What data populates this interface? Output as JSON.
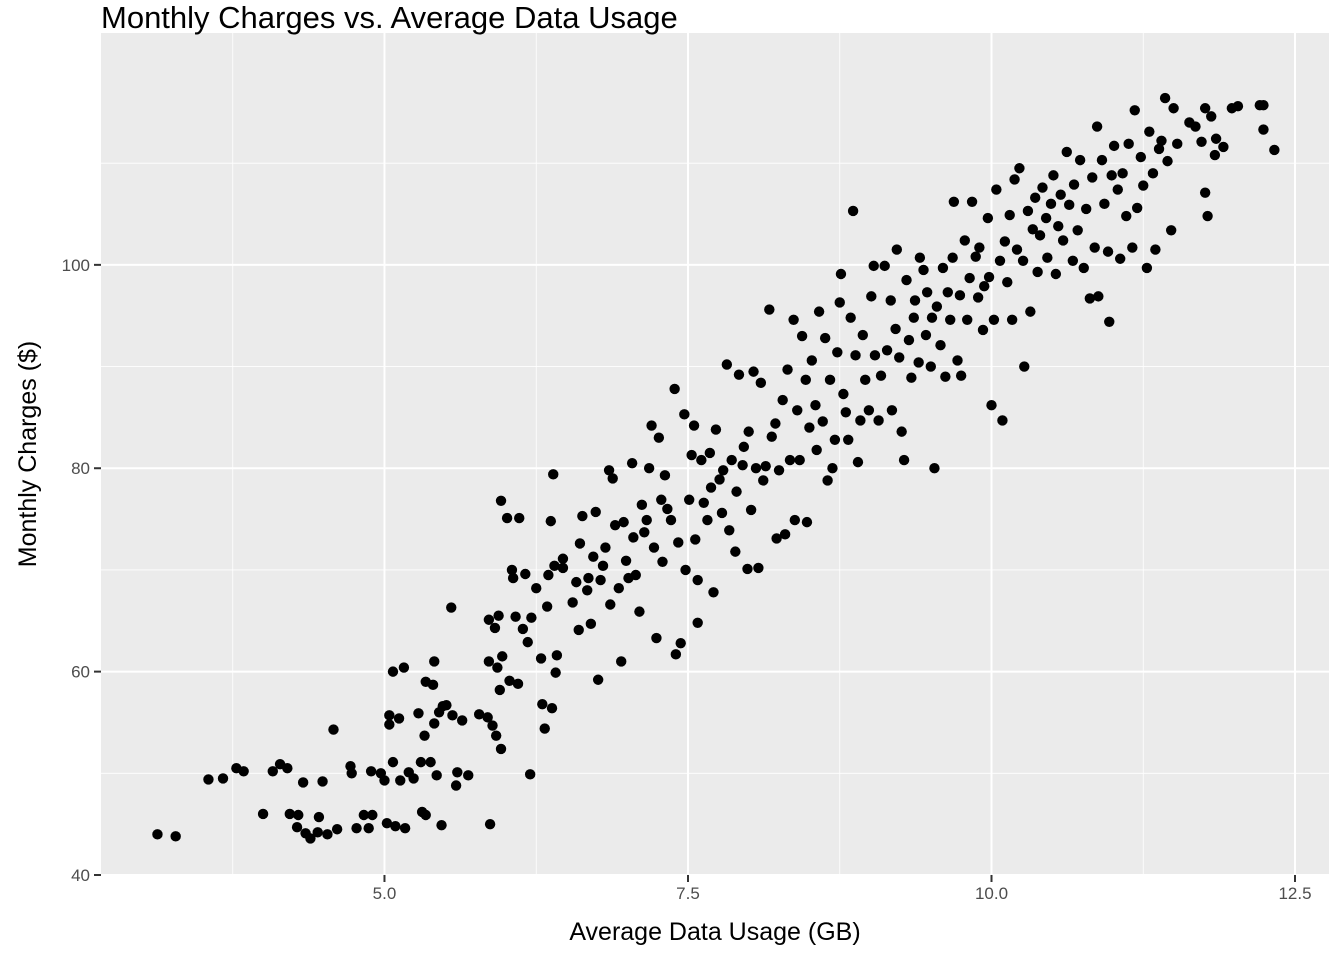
{
  "chart_data": {
    "type": "scatter",
    "title": "Monthly Charges vs. Average Data Usage",
    "x_label": "Average Data Usage (GB)",
    "y_label": "Monthly Charges ($)",
    "color": "#000000",
    "xlim": [
      2.665,
      12.78
    ],
    "ylim": [
      40,
      122.8
    ],
    "xticks": [
      {
        "value": 5,
        "label": "5.0"
      },
      7.5,
      {
        "value": 10,
        "label": "10.0"
      },
      12.5
    ],
    "yticks": [
      40,
      60,
      80,
      100
    ],
    "x_minor": [
      3.75,
      6.25,
      8.75,
      11.25
    ],
    "y_minor": [
      50,
      70,
      90,
      110
    ],
    "grid": true,
    "x": [
      3.13,
      3.28,
      3.55,
      3.67,
      3.78,
      3.84,
      4.0,
      4.08,
      4.14,
      4.2,
      4.22,
      4.29,
      4.28,
      4.33,
      4.35,
      4.39,
      4.45,
      4.46,
      4.49,
      4.53,
      4.58,
      4.61,
      4.72,
      4.73,
      4.77,
      4.83,
      4.87,
      4.89,
      4.9,
      4.97,
      5.0,
      5.02,
      5.04,
      5.04,
      5.07,
      5.07,
      5.09,
      5.12,
      5.13,
      5.16,
      5.17,
      5.2,
      5.24,
      5.28,
      5.3,
      5.31,
      5.33,
      5.34,
      5.34,
      5.38,
      5.4,
      5.41,
      5.41,
      5.43,
      5.45,
      5.47,
      5.48,
      5.51,
      5.55,
      5.56,
      5.59,
      5.6,
      5.64,
      5.69,
      5.78,
      5.85,
      5.86,
      5.86,
      5.87,
      5.89,
      5.91,
      5.92,
      5.93,
      5.94,
      5.95,
      5.96,
      5.96,
      5.97,
      6.01,
      6.03,
      6.05,
      6.06,
      6.08,
      6.1,
      6.11,
      6.14,
      6.16,
      6.18,
      6.2,
      6.21,
      6.25,
      6.29,
      6.3,
      6.32,
      6.34,
      6.35,
      6.37,
      6.38,
      6.39,
      6.4,
      6.41,
      6.42,
      6.47,
      6.47,
      6.55,
      6.58,
      6.6,
      6.61,
      6.63,
      6.67,
      6.68,
      6.7,
      6.72,
      6.74,
      6.76,
      6.78,
      6.8,
      6.82,
      6.85,
      6.86,
      6.88,
      6.9,
      6.93,
      6.95,
      6.97,
      6.99,
      7.01,
      7.04,
      7.05,
      7.07,
      7.1,
      7.12,
      7.14,
      7.16,
      7.18,
      7.2,
      7.22,
      7.24,
      7.26,
      7.28,
      7.29,
      7.31,
      7.33,
      7.36,
      7.39,
      7.4,
      7.42,
      7.44,
      7.47,
      7.48,
      7.51,
      7.53,
      7.55,
      7.56,
      7.58,
      7.58,
      7.61,
      7.63,
      7.66,
      7.68,
      7.69,
      7.71,
      7.73,
      7.76,
      7.78,
      7.79,
      7.82,
      7.84,
      7.86,
      7.89,
      7.9,
      7.92,
      7.95,
      7.96,
      7.99,
      8.0,
      8.02,
      8.04,
      8.06,
      8.08,
      8.1,
      8.12,
      8.14,
      8.17,
      8.19,
      8.22,
      8.23,
      8.25,
      8.28,
      8.3,
      8.32,
      8.34,
      8.37,
      8.38,
      8.4,
      8.42,
      8.44,
      8.47,
      8.48,
      8.5,
      8.52,
      8.55,
      8.56,
      8.58,
      8.61,
      8.63,
      8.65,
      8.67,
      8.69,
      8.71,
      8.73,
      8.75,
      8.76,
      8.78,
      8.8,
      8.82,
      8.84,
      8.86,
      8.88,
      8.9,
      8.92,
      8.94,
      8.96,
      8.99,
      9.01,
      9.03,
      9.04,
      9.07,
      9.09,
      9.12,
      9.14,
      9.17,
      9.18,
      9.21,
      9.22,
      9.24,
      9.26,
      9.28,
      9.3,
      9.32,
      9.34,
      9.36,
      9.37,
      9.4,
      9.41,
      9.44,
      9.46,
      9.47,
      9.5,
      9.51,
      9.53,
      9.55,
      9.58,
      9.6,
      9.62,
      9.64,
      9.66,
      9.68,
      9.69,
      9.72,
      9.74,
      9.75,
      9.78,
      9.8,
      9.82,
      9.84,
      9.87,
      9.89,
      9.9,
      9.93,
      9.94,
      9.97,
      9.98,
      10.0,
      10.02,
      10.04,
      10.07,
      10.09,
      10.11,
      10.13,
      10.15,
      10.17,
      10.19,
      10.21,
      10.23,
      10.26,
      10.27,
      10.3,
      10.32,
      10.34,
      10.36,
      10.38,
      10.4,
      10.42,
      10.45,
      10.46,
      10.49,
      10.51,
      10.53,
      10.55,
      10.57,
      10.59,
      10.62,
      10.64,
      10.67,
      10.68,
      10.71,
      10.73,
      10.76,
      10.78,
      10.81,
      10.83,
      10.85,
      10.87,
      10.88,
      10.91,
      10.93,
      10.96,
      10.97,
      10.99,
      11.01,
      11.04,
      11.06,
      11.08,
      11.11,
      11.13,
      11.16,
      11.18,
      11.2,
      11.23,
      11.25,
      11.28,
      11.3,
      11.33,
      11.35,
      11.38,
      11.4,
      11.43,
      11.45,
      11.48,
      11.5,
      11.53,
      11.63,
      11.68,
      11.73,
      11.76,
      11.76,
      11.78,
      11.81,
      11.84,
      11.85,
      11.91,
      11.98,
      12.03,
      12.21,
      12.24,
      12.24,
      12.33
    ],
    "values": [
      44.0,
      43.8,
      49.4,
      49.5,
      50.5,
      50.2,
      46.0,
      50.2,
      50.9,
      50.5,
      46.0,
      45.9,
      44.7,
      49.1,
      44.1,
      43.6,
      44.2,
      45.7,
      49.2,
      44.0,
      54.3,
      44.5,
      50.7,
      50.0,
      44.6,
      45.9,
      44.6,
      50.2,
      45.9,
      50.0,
      49.3,
      45.1,
      55.7,
      54.8,
      60.0,
      51.1,
      44.8,
      55.4,
      49.3,
      60.4,
      44.6,
      50.1,
      49.5,
      55.9,
      51.1,
      46.2,
      53.7,
      59.0,
      45.9,
      51.1,
      58.7,
      54.9,
      61.0,
      49.8,
      56.0,
      44.9,
      56.6,
      56.7,
      66.3,
      55.7,
      48.8,
      50.1,
      55.2,
      49.8,
      55.8,
      55.5,
      65.1,
      61.0,
      45.0,
      54.7,
      64.3,
      53.7,
      60.4,
      65.5,
      58.2,
      76.8,
      52.4,
      61.5,
      75.1,
      59.1,
      70.0,
      69.2,
      65.4,
      58.8,
      75.1,
      64.2,
      69.6,
      62.9,
      49.9,
      65.3,
      68.2,
      61.3,
      56.8,
      54.4,
      66.4,
      69.5,
      74.8,
      56.4,
      79.4,
      70.4,
      59.9,
      61.6,
      70.2,
      71.1,
      66.8,
      68.8,
      64.1,
      72.6,
      75.3,
      68.0,
      69.2,
      64.7,
      71.3,
      75.7,
      59.2,
      69.0,
      70.4,
      72.2,
      79.8,
      66.6,
      79.0,
      74.4,
      68.2,
      61.0,
      74.7,
      70.9,
      69.2,
      80.5,
      73.2,
      69.5,
      65.9,
      76.4,
      73.7,
      74.9,
      80.0,
      84.2,
      72.2,
      63.3,
      83.0,
      76.9,
      70.8,
      79.3,
      76.0,
      74.9,
      87.8,
      61.7,
      72.7,
      62.8,
      85.3,
      70.0,
      76.9,
      81.3,
      84.2,
      73.0,
      69.0,
      64.8,
      80.8,
      76.6,
      74.9,
      81.5,
      78.1,
      67.8,
      83.8,
      78.9,
      75.6,
      79.8,
      90.2,
      73.9,
      80.8,
      71.8,
      77.7,
      89.2,
      80.3,
      82.1,
      70.1,
      83.6,
      75.9,
      89.5,
      80.0,
      70.2,
      88.4,
      78.8,
      80.2,
      95.6,
      83.1,
      84.4,
      73.1,
      79.8,
      86.7,
      73.5,
      89.7,
      80.8,
      94.6,
      74.9,
      85.7,
      80.8,
      93.0,
      88.7,
      74.7,
      84.0,
      90.6,
      86.2,
      81.8,
      95.4,
      84.6,
      92.8,
      78.8,
      88.7,
      80.0,
      82.8,
      91.4,
      96.3,
      99.1,
      87.3,
      85.5,
      82.8,
      94.8,
      105.3,
      91.1,
      80.6,
      84.7,
      93.1,
      88.7,
      85.7,
      96.9,
      99.9,
      91.1,
      84.7,
      89.1,
      99.9,
      91.6,
      96.5,
      85.7,
      93.7,
      101.5,
      90.9,
      83.6,
      80.8,
      98.5,
      92.6,
      88.9,
      94.8,
      96.5,
      90.4,
      100.7,
      99.5,
      93.1,
      97.3,
      90.0,
      94.8,
      80.0,
      95.9,
      92.1,
      99.7,
      89.0,
      97.3,
      94.6,
      100.7,
      106.2,
      90.6,
      97.0,
      89.1,
      102.4,
      94.6,
      98.7,
      106.2,
      100.8,
      96.8,
      101.7,
      93.6,
      97.9,
      104.6,
      98.8,
      86.2,
      94.6,
      107.4,
      100.4,
      84.7,
      102.3,
      98.3,
      104.9,
      94.6,
      108.4,
      101.5,
      109.5,
      100.4,
      90.0,
      105.3,
      95.4,
      103.5,
      106.6,
      99.3,
      102.9,
      107.6,
      104.6,
      100.7,
      106.0,
      108.8,
      99.1,
      103.8,
      106.9,
      102.4,
      111.1,
      105.9,
      100.4,
      107.9,
      103.4,
      110.3,
      99.7,
      105.5,
      96.7,
      108.6,
      101.7,
      113.6,
      96.9,
      110.3,
      106.0,
      101.3,
      94.4,
      108.8,
      111.7,
      107.4,
      100.6,
      109.0,
      104.8,
      111.9,
      101.7,
      115.2,
      105.6,
      110.6,
      107.8,
      99.7,
      113.1,
      109.0,
      101.5,
      111.4,
      112.2,
      116.4,
      110.2,
      103.4,
      115.4,
      111.9,
      114.0,
      113.6,
      112.1,
      115.4,
      107.1,
      104.8,
      114.6,
      110.8,
      112.4,
      111.6,
      115.4,
      115.6,
      115.7,
      115.7,
      113.3,
      111.3
    ]
  }
}
